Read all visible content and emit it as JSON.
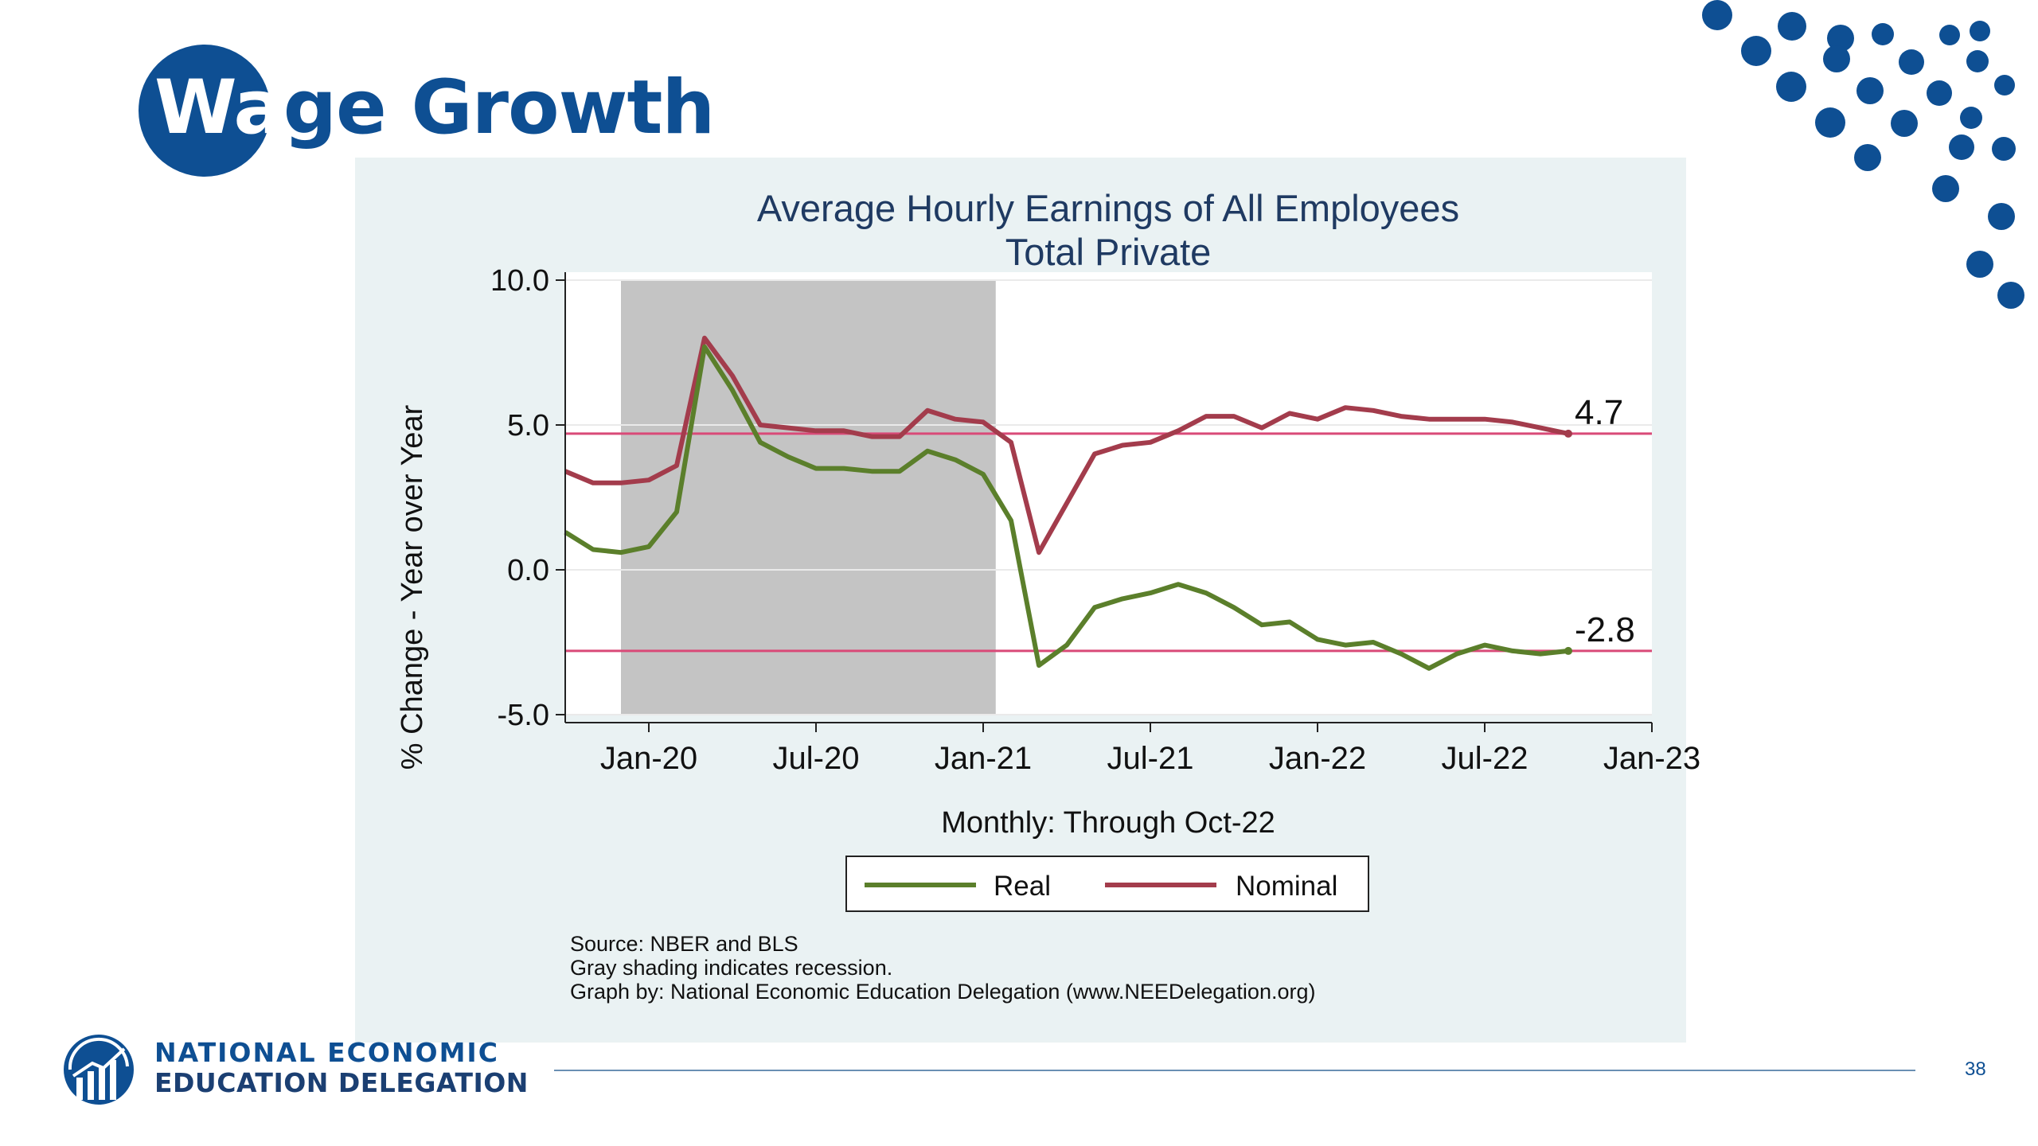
{
  "slide": {
    "title_part1": "Wa",
    "title_part2": "ge Growth",
    "page_number": "38",
    "brand_color": "#0e4f93"
  },
  "org": {
    "line1": "NATIONAL ECONOMIC",
    "line2": "EDUCATION DELEGATION",
    "logo_icon": "nee-logo-icon"
  },
  "chart_data": {
    "type": "line",
    "title": "Average Hourly Earnings of All Employees",
    "subtitle": "Total Private",
    "xlabel": "Monthly: Through Oct-22",
    "ylabel": "% Change - Year over Year",
    "ylim": [
      -5,
      10
    ],
    "yticks": [
      -5,
      0,
      5,
      10
    ],
    "ytick_labels": [
      "-5.0",
      "0.0",
      "5.0",
      "10.0"
    ],
    "xticks": [
      "2020-01",
      "2020-07",
      "2021-01",
      "2021-07",
      "2022-01",
      "2022-07",
      "2023-01"
    ],
    "xtick_labels": [
      "Jan-20",
      "Jul-20",
      "Jan-21",
      "Jul-21",
      "Jan-22",
      "Jul-22",
      "Jan-23"
    ],
    "xlim": [
      "2019-10",
      "2023-01"
    ],
    "x": [
      "2019-10",
      "2019-11",
      "2019-12",
      "2020-01",
      "2020-02",
      "2020-03",
      "2020-04",
      "2020-05",
      "2020-06",
      "2020-07",
      "2020-08",
      "2020-09",
      "2020-10",
      "2020-11",
      "2020-12",
      "2021-01",
      "2021-02",
      "2021-03",
      "2021-04",
      "2021-05",
      "2021-06",
      "2021-07",
      "2021-08",
      "2021-09",
      "2021-10",
      "2021-11",
      "2021-12",
      "2022-01",
      "2022-02",
      "2022-03",
      "2022-04",
      "2022-05",
      "2022-06",
      "2022-07",
      "2022-08",
      "2022-09",
      "2022-10"
    ],
    "series": [
      {
        "name": "Real",
        "color": "#5b7f2b",
        "values": [
          1.3,
          0.7,
          0.6,
          0.8,
          2.0,
          7.7,
          6.2,
          4.4,
          3.9,
          3.5,
          3.5,
          3.4,
          3.4,
          4.1,
          3.8,
          3.3,
          1.7,
          -3.3,
          -2.6,
          -1.3,
          -1.0,
          -0.8,
          -0.5,
          -0.8,
          -1.3,
          -1.9,
          -1.8,
          -2.4,
          -2.6,
          -2.5,
          -2.9,
          -3.4,
          -2.9,
          -2.6,
          -2.8,
          -2.9,
          -2.8
        ],
        "end_label": "-2.8"
      },
      {
        "name": "Nominal",
        "color": "#a33c4c",
        "values": [
          3.4,
          3.0,
          3.0,
          3.1,
          3.6,
          8.0,
          6.7,
          5.0,
          4.9,
          4.8,
          4.8,
          4.6,
          4.6,
          5.5,
          5.2,
          5.1,
          4.4,
          0.6,
          2.3,
          4.0,
          4.3,
          4.4,
          4.8,
          5.3,
          5.3,
          4.9,
          5.4,
          5.2,
          5.6,
          5.5,
          5.3,
          5.2,
          5.2,
          5.2,
          5.1,
          4.9,
          4.7
        ],
        "end_label": "4.7"
      }
    ],
    "reference_lines": [
      {
        "y": 4.7,
        "color": "#d94a78"
      },
      {
        "y": -2.8,
        "color": "#d94a78"
      }
    ],
    "recession_shading": [
      {
        "start": "2019-12",
        "end": "2021-01",
        "color": "#c4c4c4"
      }
    ],
    "legend": {
      "placement": "bottom",
      "entries": [
        "Real",
        "Nominal"
      ]
    },
    "grid": "horizontal",
    "notes": [
      "Source: NBER and BLS",
      "Gray shading indicates recession.",
      "Graph by: National Economic Education Delegation (www.NEEDelegation.org)"
    ]
  }
}
